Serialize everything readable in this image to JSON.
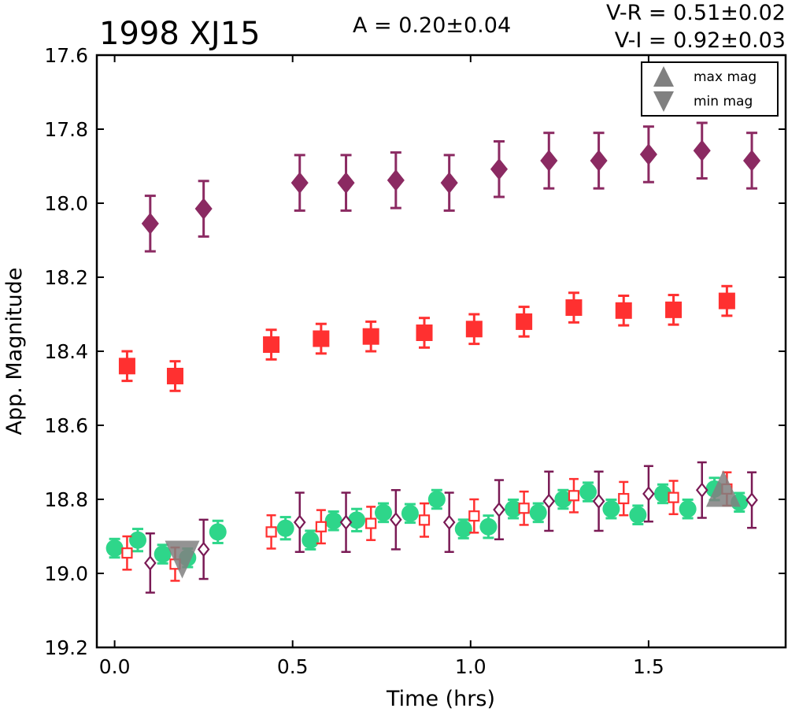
{
  "chart_data": {
    "type": "scatter",
    "title": "1998 XJ15",
    "annotations": {
      "amplitude": "A  = 0.20±0.04",
      "v_r": "V-R = 0.51±0.02",
      "v_i": "V-I  = 0.92±0.03"
    },
    "xlabel": "Time (hrs)",
    "ylabel": "App. Magnitude",
    "xlim": [
      -0.05,
      1.885
    ],
    "ylim": [
      19.2,
      17.6
    ],
    "y_inverted": true,
    "xticks": [
      "0.0",
      "0.5",
      "1.0",
      "1.5"
    ],
    "yticks": [
      "17.6",
      "17.8",
      "18.0",
      "18.2",
      "18.4",
      "18.6",
      "18.8",
      "19.0",
      "19.2"
    ],
    "grid": false,
    "legend": {
      "position": "top-right",
      "entries": [
        {
          "label": "max mag",
          "marker": "triangle-up",
          "color": "#808080"
        },
        {
          "label": "min mag",
          "marker": "triangle-down",
          "color": "#808080"
        }
      ]
    },
    "series": [
      {
        "marker": "diamond",
        "filled": true,
        "color": "#8b2a62",
        "points": [
          {
            "x": 0.1,
            "y": 18.055,
            "err": 0.075
          },
          {
            "x": 0.25,
            "y": 18.015,
            "err": 0.075
          },
          {
            "x": 0.52,
            "y": 17.945,
            "err": 0.075
          },
          {
            "x": 0.65,
            "y": 17.945,
            "err": 0.075
          },
          {
            "x": 0.79,
            "y": 17.938,
            "err": 0.075
          },
          {
            "x": 0.94,
            "y": 17.945,
            "err": 0.075
          },
          {
            "x": 1.08,
            "y": 17.908,
            "err": 0.075
          },
          {
            "x": 1.22,
            "y": 17.885,
            "err": 0.075
          },
          {
            "x": 1.36,
            "y": 17.885,
            "err": 0.075
          },
          {
            "x": 1.5,
            "y": 17.868,
            "err": 0.075
          },
          {
            "x": 1.65,
            "y": 17.858,
            "err": 0.075
          },
          {
            "x": 1.79,
            "y": 17.885,
            "err": 0.075
          }
        ]
      },
      {
        "marker": "square",
        "filled": true,
        "color": "#ff3030",
        "points": [
          {
            "x": 0.035,
            "y": 18.44,
            "err": 0.04
          },
          {
            "x": 0.17,
            "y": 18.467,
            "err": 0.04
          },
          {
            "x": 0.44,
            "y": 18.382,
            "err": 0.04
          },
          {
            "x": 0.58,
            "y": 18.366,
            "err": 0.04
          },
          {
            "x": 0.72,
            "y": 18.36,
            "err": 0.04
          },
          {
            "x": 0.87,
            "y": 18.35,
            "err": 0.04
          },
          {
            "x": 1.01,
            "y": 18.34,
            "err": 0.04
          },
          {
            "x": 1.15,
            "y": 18.32,
            "err": 0.04
          },
          {
            "x": 1.29,
            "y": 18.282,
            "err": 0.04
          },
          {
            "x": 1.43,
            "y": 18.29,
            "err": 0.04
          },
          {
            "x": 1.57,
            "y": 18.288,
            "err": 0.04
          },
          {
            "x": 1.72,
            "y": 18.264,
            "err": 0.04
          }
        ]
      },
      {
        "marker": "circle",
        "filled": true,
        "color": "#2ed68a",
        "points": [
          {
            "x": 0.0,
            "y": 18.932,
            "err": 0.025
          },
          {
            "x": 0.065,
            "y": 18.91,
            "err": 0.03
          },
          {
            "x": 0.135,
            "y": 18.948,
            "err": 0.025
          },
          {
            "x": 0.205,
            "y": 18.958,
            "err": 0.025
          },
          {
            "x": 0.29,
            "y": 18.888,
            "err": 0.03
          },
          {
            "x": 0.48,
            "y": 18.878,
            "err": 0.03
          },
          {
            "x": 0.55,
            "y": 18.91,
            "err": 0.025
          },
          {
            "x": 0.615,
            "y": 18.858,
            "err": 0.025
          },
          {
            "x": 0.68,
            "y": 18.856,
            "err": 0.03
          },
          {
            "x": 0.755,
            "y": 18.836,
            "err": 0.025
          },
          {
            "x": 0.83,
            "y": 18.838,
            "err": 0.025
          },
          {
            "x": 0.905,
            "y": 18.8,
            "err": 0.025
          },
          {
            "x": 0.98,
            "y": 18.88,
            "err": 0.025
          },
          {
            "x": 1.05,
            "y": 18.874,
            "err": 0.03
          },
          {
            "x": 1.12,
            "y": 18.826,
            "err": 0.025
          },
          {
            "x": 1.19,
            "y": 18.836,
            "err": 0.025
          },
          {
            "x": 1.26,
            "y": 18.8,
            "err": 0.025
          },
          {
            "x": 1.33,
            "y": 18.78,
            "err": 0.025
          },
          {
            "x": 1.395,
            "y": 18.826,
            "err": 0.025
          },
          {
            "x": 1.47,
            "y": 18.842,
            "err": 0.025
          },
          {
            "x": 1.54,
            "y": 18.785,
            "err": 0.025
          },
          {
            "x": 1.61,
            "y": 18.826,
            "err": 0.025
          },
          {
            "x": 1.685,
            "y": 18.772,
            "err": 0.03
          },
          {
            "x": 1.755,
            "y": 18.808,
            "err": 0.025
          }
        ]
      },
      {
        "marker": "square",
        "filled": false,
        "color": "#ff3030",
        "points": [
          {
            "x": 0.035,
            "y": 18.945,
            "err": 0.045
          },
          {
            "x": 0.17,
            "y": 18.975,
            "err": 0.045
          },
          {
            "x": 0.44,
            "y": 18.888,
            "err": 0.045
          },
          {
            "x": 0.58,
            "y": 18.874,
            "err": 0.045
          },
          {
            "x": 0.72,
            "y": 18.865,
            "err": 0.045
          },
          {
            "x": 0.87,
            "y": 18.856,
            "err": 0.045
          },
          {
            "x": 1.01,
            "y": 18.845,
            "err": 0.045
          },
          {
            "x": 1.15,
            "y": 18.824,
            "err": 0.045
          },
          {
            "x": 1.29,
            "y": 18.79,
            "err": 0.045
          },
          {
            "x": 1.43,
            "y": 18.798,
            "err": 0.045
          },
          {
            "x": 1.57,
            "y": 18.795,
            "err": 0.045
          },
          {
            "x": 1.72,
            "y": 18.772,
            "err": 0.045
          }
        ]
      },
      {
        "marker": "diamond",
        "filled": false,
        "color": "#7a1a55",
        "points": [
          {
            "x": 0.1,
            "y": 18.972,
            "err": 0.08
          },
          {
            "x": 0.25,
            "y": 18.935,
            "err": 0.08
          },
          {
            "x": 0.52,
            "y": 18.862,
            "err": 0.08
          },
          {
            "x": 0.65,
            "y": 18.862,
            "err": 0.08
          },
          {
            "x": 0.79,
            "y": 18.855,
            "err": 0.08
          },
          {
            "x": 0.94,
            "y": 18.862,
            "err": 0.08
          },
          {
            "x": 1.08,
            "y": 18.828,
            "err": 0.08
          },
          {
            "x": 1.22,
            "y": 18.805,
            "err": 0.08
          },
          {
            "x": 1.36,
            "y": 18.805,
            "err": 0.08
          },
          {
            "x": 1.5,
            "y": 18.785,
            "err": 0.075
          },
          {
            "x": 1.65,
            "y": 18.775,
            "err": 0.075
          },
          {
            "x": 1.79,
            "y": 18.802,
            "err": 0.075
          }
        ]
      }
    ],
    "extrema_markers": [
      {
        "kind": "min",
        "marker": "triangle-down",
        "x": 0.19,
        "y": 18.95,
        "color": "#808080"
      },
      {
        "kind": "max",
        "marker": "triangle-up",
        "x": 1.71,
        "y": 18.785,
        "color": "#808080"
      }
    ]
  }
}
